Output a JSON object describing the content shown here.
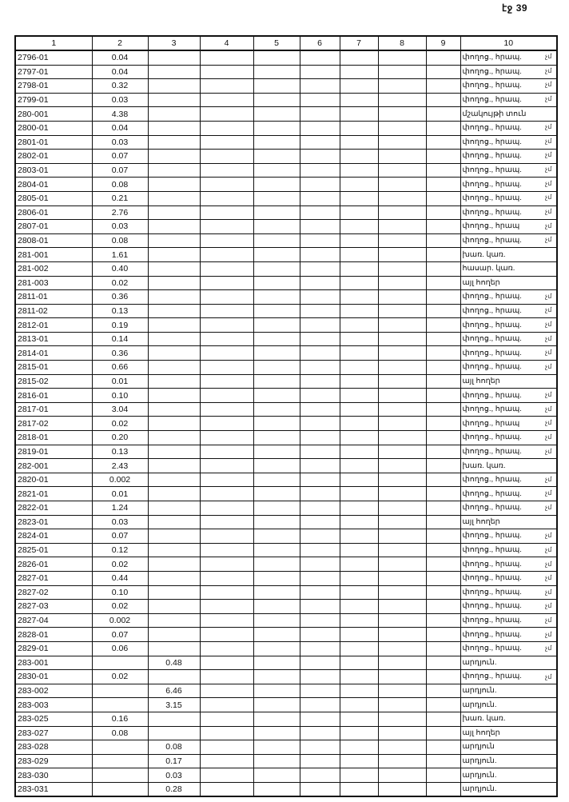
{
  "page_label": "էջ 39",
  "columns": [
    "1",
    "2",
    "3",
    "4",
    "5",
    "6",
    "7",
    "8",
    "9",
    "10"
  ],
  "rows": [
    {
      "id": "2796-01",
      "c2": "0.04",
      "c3": "",
      "c10": "փողոց., հրապ.",
      "mark": "չմ"
    },
    {
      "id": "2797-01",
      "c2": "0.04",
      "c3": "",
      "c10": "փողոց., հրապ.",
      "mark": "չմ"
    },
    {
      "id": "2798-01",
      "c2": "0.32",
      "c3": "",
      "c10": "փողոց., հրապ.",
      "mark": "չմ"
    },
    {
      "id": "2799-01",
      "c2": "0.03",
      "c3": "",
      "c10": "փողոց., հրապ.",
      "mark": "չմ"
    },
    {
      "id": "280-001",
      "c2": "4.38",
      "c3": "",
      "c10": "մշակույթի տուն",
      "mark": ""
    },
    {
      "id": "2800-01",
      "c2": "0.04",
      "c3": "",
      "c10": "փողոց., հրապ.",
      "mark": "չմ"
    },
    {
      "id": "2801-01",
      "c2": "0.03",
      "c3": "",
      "c10": "փողոց., հրապ.",
      "mark": "չմ"
    },
    {
      "id": "2802-01",
      "c2": "0.07",
      "c3": "",
      "c10": "փողոց., հրապ.",
      "mark": "չմ"
    },
    {
      "id": "2803-01",
      "c2": "0.07",
      "c3": "",
      "c10": "փողոց., հրապ.",
      "mark": "չմ"
    },
    {
      "id": "2804-01",
      "c2": "0.08",
      "c3": "",
      "c10": "փողոց., հրապ.",
      "mark": "չմ"
    },
    {
      "id": "2805-01",
      "c2": "0.21",
      "c3": "",
      "c10": "փողոց., հրապ.",
      "mark": "չմ"
    },
    {
      "id": "2806-01",
      "c2": "2.76",
      "c3": "",
      "c10": "փողոց., հրապ.",
      "mark": "չմ"
    },
    {
      "id": "2807-01",
      "c2": "0.03",
      "c3": "",
      "c10": "փողոց., հրապ",
      "mark": "չմ"
    },
    {
      "id": "2808-01",
      "c2": "0.08",
      "c3": "",
      "c10": "փողոց., հրապ.",
      "mark": "չմ"
    },
    {
      "id": "281-001",
      "c2": "1.61",
      "c3": "",
      "c10": "խառ. կառ.",
      "mark": ""
    },
    {
      "id": "281-002",
      "c2": "0.40",
      "c3": "",
      "c10": "հասար. կառ.",
      "mark": ""
    },
    {
      "id": "281-003",
      "c2": "0.02",
      "c3": "",
      "c10": "այլ հողեր",
      "mark": ""
    },
    {
      "id": "2811-01",
      "c2": "0.36",
      "c3": "",
      "c10": "փողոց., հրապ.",
      "mark": "չմ"
    },
    {
      "id": "2811-02",
      "c2": "0.13",
      "c3": "",
      "c10": "փողոց., հրապ.",
      "mark": "չմ"
    },
    {
      "id": "2812-01",
      "c2": "0.19",
      "c3": "",
      "c10": "փողոց., հրապ.",
      "mark": "չմ"
    },
    {
      "id": "2813-01",
      "c2": "0.14",
      "c3": "",
      "c10": "փողոց., հրապ.",
      "mark": "չմ"
    },
    {
      "id": "2814-01",
      "c2": "0.36",
      "c3": "",
      "c10": "փողոց., հրապ.",
      "mark": "չմ"
    },
    {
      "id": "2815-01",
      "c2": "0.66",
      "c3": "",
      "c10": "փողոց., հրապ.",
      "mark": "չմ"
    },
    {
      "id": "2815-02",
      "c2": "0.01",
      "c3": "",
      "c10": "այլ հողեր",
      "mark": ""
    },
    {
      "id": "2816-01",
      "c2": "0.10",
      "c3": "",
      "c10": "փողոց., հրապ.",
      "mark": "չմ"
    },
    {
      "id": "2817-01",
      "c2": "3.04",
      "c3": "",
      "c10": "փողոց., հրապ.",
      "mark": "չմ"
    },
    {
      "id": "2817-02",
      "c2": "0.02",
      "c3": "",
      "c10": "փողոց., հրապ",
      "mark": "չմ"
    },
    {
      "id": "2818-01",
      "c2": "0.20",
      "c3": "",
      "c10": "փողոց., հրապ.",
      "mark": "չմ"
    },
    {
      "id": "2819-01",
      "c2": "0.13",
      "c3": "",
      "c10": "փողոց., հրապ.",
      "mark": "չմ"
    },
    {
      "id": "282-001",
      "c2": "2.43",
      "c3": "",
      "c10": "խառ. կառ.",
      "mark": ""
    },
    {
      "id": "2820-01",
      "c2": "0.002",
      "c3": "",
      "c10": "փողոց., հրապ.",
      "mark": "չմ"
    },
    {
      "id": "2821-01",
      "c2": "0.01",
      "c3": "",
      "c10": "փողոց., հրապ.",
      "mark": "չմ"
    },
    {
      "id": "2822-01",
      "c2": "1.24",
      "c3": "",
      "c10": "փողոց., հրապ.",
      "mark": "չմ"
    },
    {
      "id": "2823-01",
      "c2": "0.03",
      "c3": "",
      "c10": "այլ հողեր",
      "mark": ""
    },
    {
      "id": "2824-01",
      "c2": "0.07",
      "c3": "",
      "c10": "փողոց., հրապ.",
      "mark": "չմ"
    },
    {
      "id": "2825-01",
      "c2": "0.12",
      "c3": "",
      "c10": "փողոց., հրապ.",
      "mark": "չմ"
    },
    {
      "id": "2826-01",
      "c2": "0.02",
      "c3": "",
      "c10": "փողոց., հրապ.",
      "mark": "չմ"
    },
    {
      "id": "2827-01",
      "c2": "0.44",
      "c3": "",
      "c10": "փողոց., հրապ.",
      "mark": "չմ"
    },
    {
      "id": "2827-02",
      "c2": "0.10",
      "c3": "",
      "c10": "փողոց., հրապ.",
      "mark": "չմ"
    },
    {
      "id": "2827-03",
      "c2": "0.02",
      "c3": "",
      "c10": "փողոց., հրապ.",
      "mark": "չմ"
    },
    {
      "id": "2827-04",
      "c2": "0.002",
      "c3": "",
      "c10": "փողոց., հրապ.",
      "mark": "չմ"
    },
    {
      "id": "2828-01",
      "c2": "0.07",
      "c3": "",
      "c10": "փողոց., հրապ.",
      "mark": "չմ"
    },
    {
      "id": "2829-01",
      "c2": "0.06",
      "c3": "",
      "c10": "փողոց., հրապ.",
      "mark": "չմ"
    },
    {
      "id": "283-001",
      "c2": "",
      "c3": "0.48",
      "c10": "արդյուն.",
      "mark": ""
    },
    {
      "id": "2830-01",
      "c2": "0.02",
      "c3": "",
      "c10": "փողոց., հրապ.",
      "mark": "չմ"
    },
    {
      "id": "283-002",
      "c2": "",
      "c3": "6.46",
      "c10": "արդյուն.",
      "mark": ""
    },
    {
      "id": "283-003",
      "c2": "",
      "c3": "3.15",
      "c10": "արդյուն.",
      "mark": ""
    },
    {
      "id": "283-025",
      "c2": "0.16",
      "c3": "",
      "c10": "խառ. կառ.",
      "mark": ""
    },
    {
      "id": "283-027",
      "c2": "0.08",
      "c3": "",
      "c10": "այլ հողեր",
      "mark": ""
    },
    {
      "id": "283-028",
      "c2": "",
      "c3": "0.08",
      "c10": "արդյուն",
      "mark": ""
    },
    {
      "id": "283-029",
      "c2": "",
      "c3": "0.17",
      "c10": "արդյուն.",
      "mark": ""
    },
    {
      "id": "283-030",
      "c2": "",
      "c3": "0.03",
      "c10": "արդյուն.",
      "mark": ""
    },
    {
      "id": "283-031",
      "c2": "",
      "c3": "0.28",
      "c10": "արդյուն.",
      "mark": ""
    }
  ]
}
